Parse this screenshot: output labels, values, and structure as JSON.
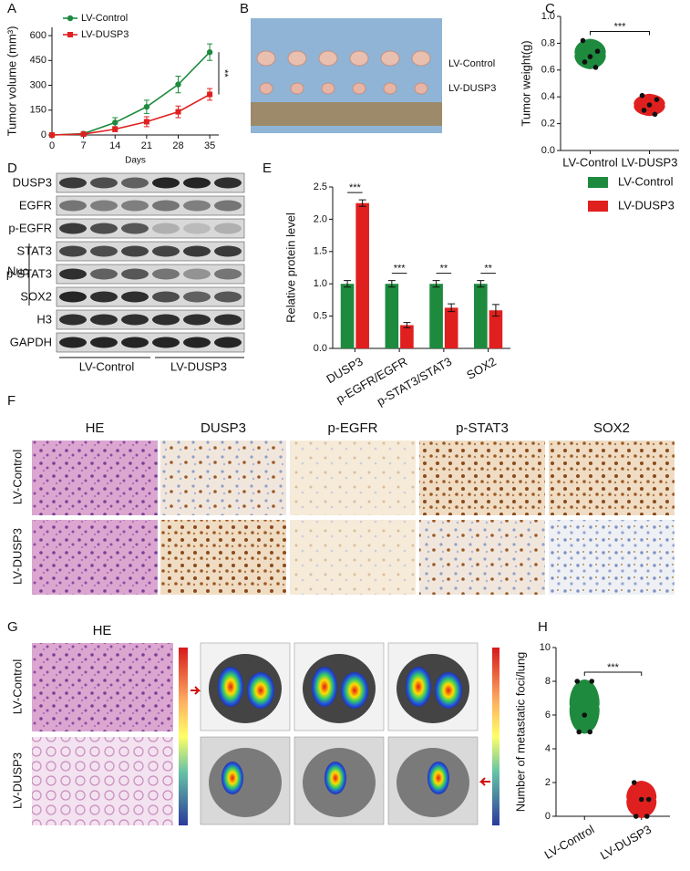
{
  "panels": {
    "labels": [
      "A",
      "B",
      "C",
      "D",
      "E",
      "F",
      "G",
      "H"
    ]
  },
  "tumor_photo": {
    "labels": [
      "LV-Control",
      "LV-DUSP3"
    ]
  },
  "western_blot": {
    "proteins": [
      "DUSP3",
      "EGFR",
      "p-EGFR",
      "STAT3",
      "p-STAT3",
      "SOX2",
      "H3",
      "GAPDH"
    ],
    "nuclear_label": "Nuc",
    "groups": [
      "LV-Control",
      "LV-DUSP3"
    ]
  },
  "ihc": {
    "columns": [
      "HE",
      "DUSP3",
      "p-EGFR",
      "p-STAT3",
      "SOX2"
    ],
    "rows": [
      "LV-Control",
      "LV-DUSP3"
    ]
  },
  "metastasis_images": {
    "stain": "HE",
    "rows": [
      "LV-Control",
      "LV-DUSP3"
    ]
  },
  "chart_data": [
    {
      "type": "line",
      "xlabel": "Days",
      "ylabel": "Tumor volume (mm³)",
      "x": [
        0,
        7,
        14,
        21,
        28,
        35
      ],
      "xlim": [
        0,
        37
      ],
      "xticks": [
        0,
        7,
        14,
        21,
        28,
        35
      ],
      "ylim": [
        0,
        650
      ],
      "yticks": [
        0,
        150,
        300,
        450,
        600
      ],
      "legend": "upper left",
      "annotation": "**",
      "series": [
        {
          "name": "LV-Control",
          "color": "#1e8a3e",
          "marker": "circle",
          "values": [
            0,
            8,
            75,
            170,
            305,
            500
          ],
          "errors": [
            0,
            4,
            30,
            40,
            50,
            50
          ]
        },
        {
          "name": "LV-DUSP3",
          "color": "#e0201f",
          "marker": "square",
          "values": [
            0,
            5,
            35,
            80,
            140,
            245
          ],
          "errors": [
            0,
            3,
            15,
            30,
            35,
            35
          ]
        }
      ]
    },
    {
      "type": "violin",
      "ylabel": "Tumor weight(g)",
      "categories": [
        "LV-Control",
        "LV-DUSP3"
      ],
      "colors": [
        "#1e8a3e",
        "#e0201f"
      ],
      "values": [
        [
          0.82,
          0.74,
          0.7,
          0.66,
          0.62
        ],
        [
          0.41,
          0.38,
          0.34,
          0.3,
          0.27
        ]
      ],
      "ylim": [
        0,
        1.0
      ],
      "yticks": [
        {
          "value": 0,
          "label": "0.0"
        },
        0.2,
        0.4,
        0.6,
        0.8,
        {
          "value": 1,
          "label": "1.0"
        }
      ],
      "annotation": "***"
    },
    {
      "type": "bar",
      "ylabel": "Relative protein level",
      "categories": [
        "DUSP3",
        "p-EGFR/EGFR",
        "p-STAT3/STAT3",
        "SOX2"
      ],
      "ylim": [
        0,
        2.5
      ],
      "yticks": [
        {
          "value": 0,
          "label": "0.0"
        },
        0.5,
        {
          "value": 1,
          "label": "1.0"
        },
        1.5,
        {
          "value": 2,
          "label": "2.0"
        },
        2.5
      ],
      "legend": "right",
      "annotations": [
        "***",
        "***",
        "**",
        "**"
      ],
      "series": [
        {
          "name": "LV-Control",
          "color": "#1e8a3e",
          "values": [
            1,
            1,
            1,
            1
          ],
          "errors": [
            0.05,
            0.05,
            0.05,
            0.05
          ]
        },
        {
          "name": "LV-DUSP3",
          "color": "#e0201f",
          "values": [
            2.25,
            0.36,
            0.63,
            0.59
          ],
          "errors": [
            0.05,
            0.04,
            0.06,
            0.09
          ]
        }
      ]
    },
    {
      "type": "violin",
      "ylabel": "Number of metastatic foci/lung",
      "categories": [
        "LV-Control",
        "LV-DUSP3"
      ],
      "colors": [
        "#1e8a3e",
        "#e0201f"
      ],
      "values": [
        [
          8,
          8,
          6,
          5,
          5
        ],
        [
          2,
          1,
          1,
          0,
          0
        ]
      ],
      "ylim": [
        0,
        10
      ],
      "yticks": [
        0,
        2,
        4,
        6,
        8,
        10
      ],
      "annotation": "***"
    }
  ]
}
